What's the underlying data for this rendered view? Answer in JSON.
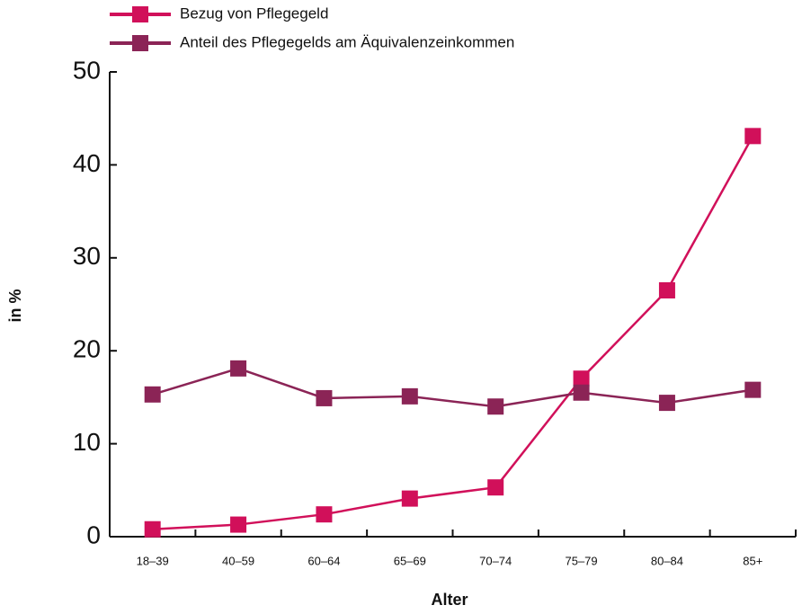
{
  "chart_data": {
    "type": "line",
    "xlabel": "Alter",
    "ylabel": "in %",
    "categories": [
      "18–39",
      "40–59",
      "60–64",
      "65–69",
      "70–74",
      "75–79",
      "80–84",
      "85+"
    ],
    "series": [
      {
        "name": "Bezug von Pflegegeld",
        "color": "#d1105a",
        "values": [
          0.8,
          1.3,
          2.4,
          4.1,
          5.3,
          17.0,
          26.5,
          43.1
        ]
      },
      {
        "name": "Anteil des Pflegegelds am Äquivalenzeinkommen",
        "color": "#8b2456",
        "values": [
          15.3,
          18.1,
          14.9,
          15.1,
          14.0,
          15.5,
          14.4,
          15.8
        ]
      }
    ],
    "ylim": [
      0,
      50
    ],
    "yticks": [
      0,
      10,
      20,
      30,
      40,
      50
    ],
    "grid": false,
    "legend": "top-left"
  }
}
